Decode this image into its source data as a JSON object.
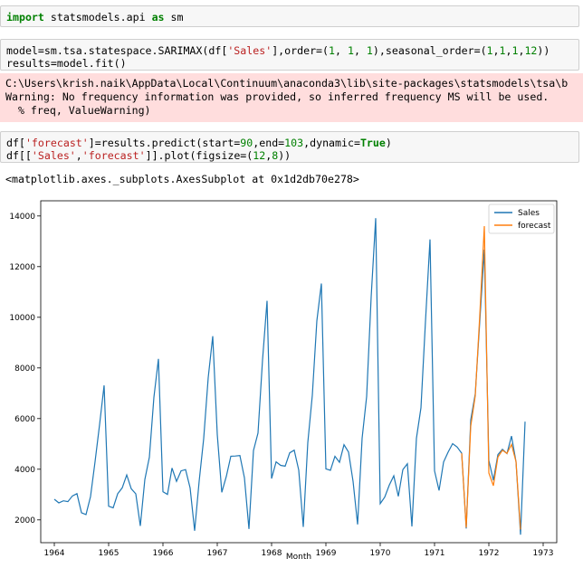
{
  "cells": {
    "cell1": {
      "kw_import": "import",
      "mod": " statsmodels.api ",
      "kw_as": "as",
      "alias": " sm"
    },
    "cell2": {
      "l1a": "model=sm.tsa.statespace.SARIMAX(df[",
      "l1s": "'Sales'",
      "l1b": "],order=(",
      "l1n1": "1",
      "l1c": ", ",
      "l1n2": "1",
      "l1d": ", ",
      "l1n3": "1",
      "l1e": "),seasonal_order=(",
      "l1n4": "1",
      "l1f": ",",
      "l1n5": "1",
      "l1g": ",",
      "l1n6": "1",
      "l1h": ",",
      "l1n7": "12",
      "l1i": "))",
      "l2": "results=model.fit()"
    },
    "stderr": {
      "l1": "C:\\Users\\krish.naik\\AppData\\Local\\Continuum\\anaconda3\\lib\\site-packages\\statsmodels\\tsa\\b",
      "l2": "Warning: No frequency information was provided, so inferred frequency MS will be used.",
      "l3": "  % freq, ValueWarning)"
    },
    "cell3": {
      "l1a": "df[",
      "l1s": "'forecast'",
      "l1b": "]=results.predict(start=",
      "l1n1": "90",
      "l1c": ",end=",
      "l1n2": "103",
      "l1d": ",dynamic=",
      "l1kw": "True",
      "l1e": ")",
      "l2a": "df[[",
      "l2s1": "'Sales'",
      "l2b": ",",
      "l2s2": "'forecast'",
      "l2c": "]].plot(figsize=(",
      "l2n1": "12",
      "l2d": ",",
      "l2n2": "8",
      "l2e": "))"
    },
    "output_text": "<matplotlib.axes._subplots.AxesSubplot at 0x1d2db70e278>"
  },
  "chart_data": {
    "type": "line",
    "xlabel": "Month",
    "ylabel": "",
    "legend_position": "top-right",
    "x_start": "1964-01",
    "x_ticks": [
      "1964",
      "1965",
      "1966",
      "1967",
      "1968",
      "1969",
      "1970",
      "1971",
      "1972",
      "1973"
    ],
    "y_ticks": [
      2000,
      4000,
      6000,
      8000,
      10000,
      12000,
      14000
    ],
    "ylim": [
      1100,
      14600
    ],
    "colors": {
      "Sales": "#1f77b4",
      "forecast": "#ff7f0e"
    },
    "series": [
      {
        "name": "Sales",
        "start_index": 0,
        "values": [
          2815,
          2672,
          2755,
          2721,
          2946,
          3036,
          2282,
          2212,
          2922,
          4301,
          5764,
          7312,
          2541,
          2475,
          3031,
          3266,
          3776,
          3230,
          3028,
          1759,
          3595,
          4474,
          6838,
          8357,
          3113,
          3006,
          4047,
          3523,
          3937,
          3986,
          3260,
          1573,
          3528,
          5211,
          7614,
          9254,
          5375,
          3088,
          3718,
          4514,
          4520,
          4539,
          3663,
          1643,
          4739,
          5428,
          8314,
          10651,
          3633,
          4292,
          4154,
          4121,
          4647,
          4753,
          3965,
          1723,
          5048,
          6922,
          9858,
          11331,
          4016,
          3957,
          4510,
          4276,
          4968,
          4677,
          3523,
          1821,
          5222,
          6872,
          10803,
          13916,
          2639,
          2899,
          3370,
          3740,
          2927,
          3986,
          4217,
          1738,
          5221,
          6424,
          9842,
          13076,
          3934,
          3162,
          4286,
          4676,
          5010,
          4874,
          4633,
          1659,
          5951,
          6981,
          9851,
          12670,
          4348,
          3564,
          4577,
          4788,
          4618,
          5312,
          4298,
          1413,
          5877
        ]
      },
      {
        "name": "forecast",
        "start_index": 90,
        "values": [
          4633,
          1700,
          5700,
          6900,
          10100,
          13600,
          3850,
          3350,
          4480,
          4750,
          4620,
          4980,
          4300,
          1620
        ]
      }
    ]
  }
}
